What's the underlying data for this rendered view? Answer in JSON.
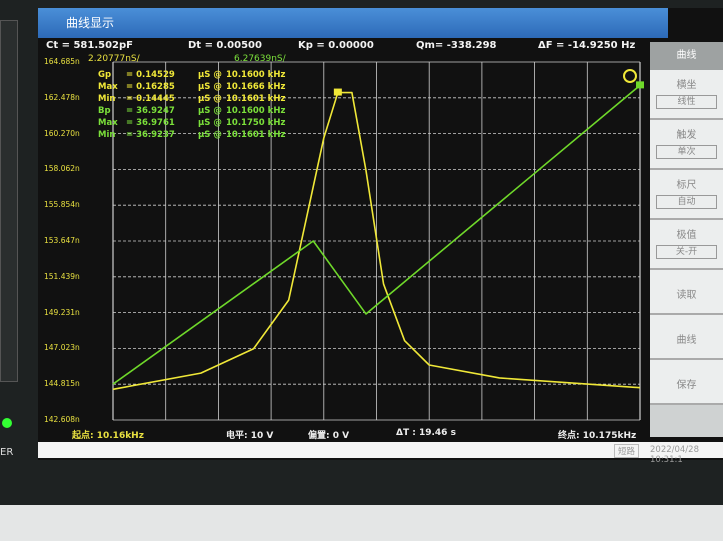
{
  "window": {
    "title": "曲线显示"
  },
  "params": {
    "ct": "Ct  =  581.502pF",
    "dt": "Dt  =  0.00500",
    "kp": "Kp  =  0.00000",
    "qm": "Qm= -338.298",
    "df": "ΔF  =  -14.9250 Hz"
  },
  "scales": {
    "left": "2.20777nS/",
    "right": "6.27639nS/"
  },
  "readouts": {
    "gp": [
      "Gp",
      "= 0.14529",
      "μS @",
      "10.1600 kHz"
    ],
    "gp_max": [
      "Max",
      "= 0.16285",
      "μS @",
      "10.1666 kHz"
    ],
    "gp_min": [
      "Min",
      "= 0.14445",
      "μS @",
      "10.1601 kHz"
    ],
    "bp": [
      "Bp",
      "= 36.9247",
      "μS @",
      "10.1600 kHz"
    ],
    "bp_max": [
      "Max",
      "= 36.9761",
      "μS @",
      "10.1750 kHz"
    ],
    "bp_min": [
      "Min",
      "= 36.9237",
      "μS @",
      "10.1601 kHz"
    ]
  },
  "footer": {
    "start": "起点: 10.16kHz",
    "level": "电平: 10 V",
    "bias": "偏置: 0 V",
    "dt": "ΔT : 19.46 s",
    "end": "终点: 10.175kHz"
  },
  "status": {
    "mode": "短路",
    "datetime": "2022/04/28 10:31:1"
  },
  "sidebar": {
    "header": "曲线",
    "items": [
      {
        "label": "横坐",
        "value": "线性"
      },
      {
        "label": "触发",
        "value": "单次"
      },
      {
        "label": "标尺",
        "value": "自动"
      },
      {
        "label": "极值",
        "value": "关-开"
      }
    ],
    "buttons": [
      "读取",
      "曲线",
      "保存"
    ]
  },
  "bezel": {
    "label": "ER"
  },
  "colors": {
    "gp": "#f0e838",
    "bp": "#6fd82a",
    "grid": "#cfcfcf",
    "title": "#3a7cc8"
  },
  "icons": [
    "refresh-icon"
  ],
  "chart_data": {
    "type": "line",
    "x_range_khz": [
      10.16,
      10.175
    ],
    "y_ticks_left": [
      "164.685n",
      "162.478n",
      "160.270n",
      "158.062n",
      "155.854n",
      "153.647n",
      "151.439n",
      "149.231n",
      "147.023n",
      "144.815n",
      "142.608n"
    ],
    "ylim_left_nS": [
      142.608,
      164.685
    ],
    "ylim_right_uS": [
      36.9174,
      36.9802
    ],
    "grid": true,
    "series": [
      {
        "name": "Gp",
        "axis": "left",
        "color": "#f0e838",
        "x": [
          10.16,
          10.1625,
          10.164,
          10.165,
          10.1655,
          10.166,
          10.1664,
          10.1668,
          10.1672,
          10.1677,
          10.1683,
          10.169,
          10.171,
          10.175
        ],
        "y": [
          144.5,
          145.5,
          147,
          150,
          155,
          160,
          162.8,
          162.8,
          158,
          151,
          147.5,
          146,
          145.2,
          144.6
        ]
      },
      {
        "name": "Bp",
        "axis": "right",
        "color": "#6fd82a",
        "x": [
          10.16,
          10.1657,
          10.1672,
          10.175
        ],
        "y": [
          36.9237,
          36.9488,
          36.936,
          36.9761
        ]
      }
    ]
  }
}
